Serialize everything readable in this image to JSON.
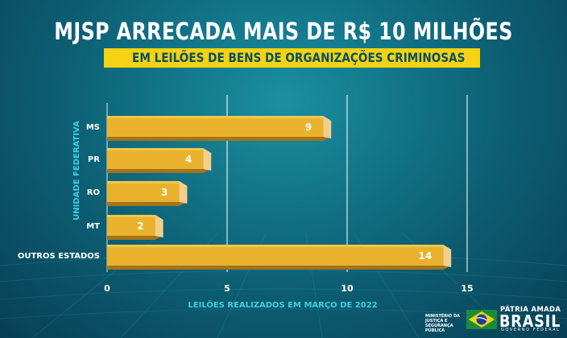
{
  "title": "MJSP ARRECADA MAIS DE  R$ 10 MILHÕES",
  "subtitle": "EM LEILÕES DE BENS DE ORGANIZAÇÕES CRIMINOSAS",
  "chart_data": {
    "type": "bar",
    "orientation": "horizontal",
    "categories": [
      "MS",
      "PR",
      "RO",
      "MT",
      "OUTROS ESTADOS"
    ],
    "values": [
      9,
      4,
      3,
      2,
      14
    ],
    "xlabel": "LEILÕES REALIZADOS EM MARÇO DE 2022",
    "ylabel": "UNIDADE FEDERATIVA",
    "xlim": [
      0,
      15
    ],
    "xticks": [
      0,
      5,
      10,
      15
    ],
    "grid": true
  },
  "colors": {
    "bar_face": "#eab22c",
    "bar_side": "#f3cf8a",
    "bar_bottom": "#a6731a",
    "gridline": "#ffffff",
    "accent_yellow": "#f5d312",
    "axis_label": "#3fd0df"
  },
  "footer": {
    "ministry_lines": [
      "MINISTÉRIO DA",
      "JUSTIÇA E",
      "SEGURANÇA PÚBLICA"
    ],
    "slogan_top": "PÁTRIA AMADA",
    "slogan_main": "BRASIL",
    "slogan_bottom": "GOVERNO FEDERAL",
    "flag_icon": "brazil-flag-icon"
  }
}
